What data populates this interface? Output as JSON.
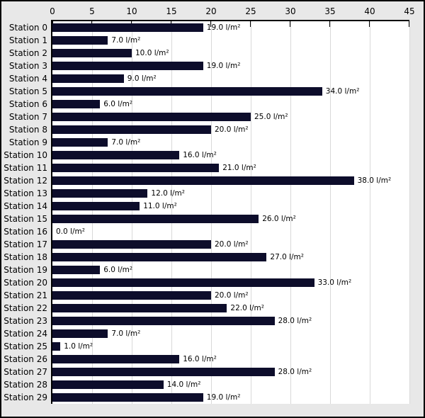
{
  "chart_data": {
    "type": "bar",
    "orientation": "horizontal",
    "title": "",
    "xlabel": "",
    "ylabel": "",
    "unit": "l/m²",
    "value_label_suffix": " l/m²",
    "xlim": [
      0,
      45
    ],
    "xticks": [
      0,
      5,
      10,
      15,
      20,
      25,
      30,
      35,
      40,
      45
    ],
    "grid": "vertical",
    "legend": "none",
    "categories": [
      "Station 0",
      "Station 1",
      "Station 2",
      "Station 3",
      "Station 4",
      "Station 5",
      "Station 6",
      "Station 7",
      "Station 8",
      "Station 9",
      "Station 10",
      "Station 11",
      "Station 12",
      "Station 13",
      "Station 14",
      "Station 15",
      "Station 16",
      "Station 17",
      "Station 18",
      "Station 19",
      "Station 20",
      "Station 21",
      "Station 22",
      "Station 23",
      "Station 24",
      "Station 25",
      "Station 26",
      "Station 27",
      "Station 28",
      "Station 29"
    ],
    "values": [
      19.0,
      7.0,
      10.0,
      19.0,
      9.0,
      34.0,
      6.0,
      25.0,
      20.0,
      7.0,
      16.0,
      21.0,
      38.0,
      12.0,
      11.0,
      26.0,
      0.0,
      20.0,
      27.0,
      6.0,
      33.0,
      20.0,
      22.0,
      28.0,
      7.0,
      1.0,
      16.0,
      28.0,
      14.0,
      19.0
    ],
    "value_labels": [
      "19.0 l/m²",
      "7.0 l/m²",
      "10.0 l/m²",
      "19.0 l/m²",
      "9.0 l/m²",
      "34.0 l/m²",
      "6.0 l/m²",
      "25.0 l/m²",
      "20.0 l/m²",
      "7.0 l/m²",
      "16.0 l/m²",
      "21.0 l/m²",
      "38.0 l/m²",
      "12.0 l/m²",
      "11.0 l/m²",
      "26.0 l/m²",
      "0.0 l/m²",
      "20.0 l/m²",
      "27.0 l/m²",
      "6.0 l/m²",
      "33.0 l/m²",
      "20.0 l/m²",
      "22.0 l/m²",
      "28.0 l/m²",
      "7.0 l/m²",
      "1.0 l/m²",
      "16.0 l/m²",
      "28.0 l/m²",
      "14.0 l/m²",
      "19.0 l/m²"
    ],
    "colors": {
      "bar": "#0d0d2b",
      "figure_background": "#e8e8e8",
      "plot_background": "#ffffff",
      "gridline": "#d9d9d9",
      "axis_line": "#000000",
      "text": "#000000",
      "outer_border": "#000000"
    }
  }
}
